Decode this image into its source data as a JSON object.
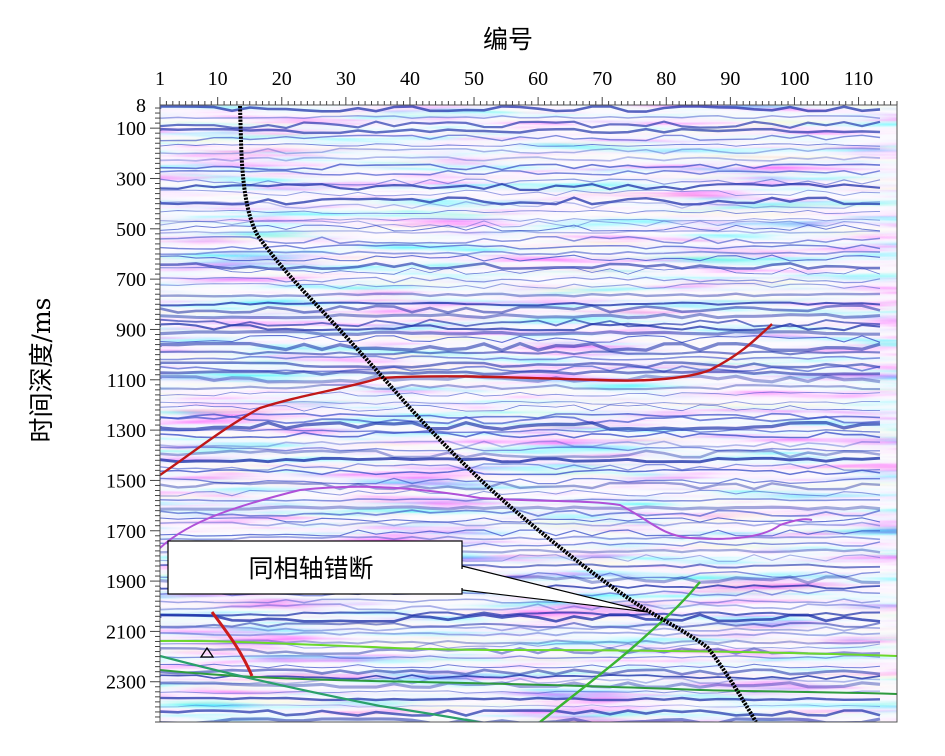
{
  "figure": {
    "x_axis_title": "编号",
    "y_axis_title": "时间深度/ms",
    "x_tick_labels": [
      "1",
      "10",
      "20",
      "30",
      "40",
      "50",
      "60",
      "70",
      "80",
      "90",
      "100",
      "110"
    ],
    "x_tick_values": [
      1,
      10,
      20,
      30,
      40,
      50,
      60,
      70,
      80,
      90,
      100,
      110
    ],
    "y_tick_labels": [
      "8",
      "100",
      "300",
      "500",
      "700",
      "900",
      "1100",
      "1300",
      "1500",
      "1700",
      "1900",
      "2100",
      "2300"
    ],
    "y_tick_values": [
      8,
      100,
      300,
      500,
      700,
      900,
      1100,
      1300,
      1500,
      1700,
      1900,
      2100,
      2300
    ],
    "x_range": [
      1,
      116
    ],
    "y_range": [
      8,
      2460
    ],
    "annotation": "同相轴错断",
    "colors": {
      "background_trace": "#1b2fa8",
      "background_light": "#eef0ff",
      "well_path": "#000000",
      "horizon_1": "#c01818",
      "horizon_2": "#b050d8",
      "horizon_3": "#6bd82b",
      "horizon_4": "#2e9a3e",
      "horizon_5": "#2aa06a",
      "fault": "#cc1c1c",
      "fault_green": "#39b531"
    }
  }
}
